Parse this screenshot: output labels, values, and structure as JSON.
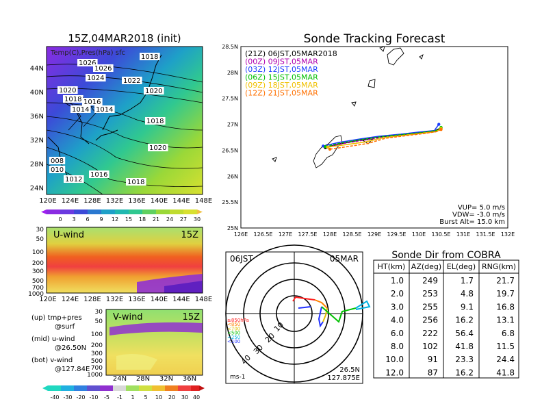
{
  "left": {
    "title": "15Z,04MAR2018 (init)",
    "map_label": "Temp(C),Pres(hPa) sfc",
    "map_x_ticks": [
      "120E",
      "124E",
      "128E",
      "132E",
      "136E",
      "140E",
      "144E",
      "148E"
    ],
    "map_y_ticks": [
      "44N",
      "40N",
      "36N",
      "32N",
      "28N",
      "24N"
    ],
    "isobar_labels": [
      "1026",
      "1026",
      "1024",
      "1022",
      "1018",
      "1020",
      "1020",
      "1018",
      "1016",
      "1014",
      "1014",
      "1018",
      "1020",
      "1016",
      "1012",
      "1018",
      "008",
      "010"
    ],
    "temp_colorbar": [
      "0",
      "3",
      "6",
      "9",
      "12",
      "15",
      "18",
      "21",
      "24",
      "27",
      "30"
    ],
    "uwind_title": "U-wind",
    "uwind_time": "15Z",
    "uwind_y_ticks": [
      "30",
      "50",
      "100",
      "200",
      "300",
      "500",
      "700",
      "1000"
    ],
    "uwind_x_ticks": [
      "120E",
      "124E",
      "128E",
      "132E",
      "136E",
      "140E",
      "144E",
      "148E"
    ],
    "vwind_title": "V-wind",
    "vwind_time": "15Z",
    "vwind_y_ticks": [
      "30",
      "50",
      "100",
      "200",
      "300",
      "500",
      "700",
      "1000"
    ],
    "vwind_x_ticks": [
      "24N",
      "28N",
      "32N",
      "36N"
    ],
    "notes": [
      "(up) tmp+pres",
      "@surf",
      "(mid) u-wind",
      "@26.50N",
      "(bot) v-wind",
      "@127.84E"
    ],
    "wind_colorbar": [
      "-40",
      "-30",
      "-20",
      "-10",
      "-5",
      "-1",
      "1",
      "5",
      "10",
      "20",
      "30",
      "40"
    ]
  },
  "tracking": {
    "title": "Sonde Tracking Forecast",
    "legend": [
      {
        "text": "(21Z) 06JST,05MAR2018",
        "color": "#000000"
      },
      {
        "text": "(00Z) 09JST,05MAR",
        "color": "#b000b0"
      },
      {
        "text": "(03Z) 12JST,05MAR",
        "color": "#1a3cff"
      },
      {
        "text": "(06Z) 15JST,05MAR",
        "color": "#00c000"
      },
      {
        "text": "(09Z) 18JST,05MAR",
        "color": "#f0c000"
      },
      {
        "text": "(12Z) 21JST,05MAR",
        "color": "#ff7000"
      }
    ],
    "params": [
      "VUP= 5.0 m/s",
      "VDW= -3.0 m/s",
      "Burst Alt= 15.0 km"
    ],
    "x_ticks": [
      "126E",
      "126.5E",
      "127E",
      "127.5E",
      "128E",
      "128.5E",
      "129E",
      "129.5E",
      "130E",
      "130.5E",
      "131E",
      "131.5E",
      "132E"
    ],
    "y_ticks": [
      "28.5N",
      "28N",
      "27.5N",
      "27N",
      "26.5N",
      "26N",
      "25.5N",
      "25N"
    ]
  },
  "polar": {
    "left_label": "06JST",
    "right_label": "05MAR",
    "ring_labels": [
      "10",
      "20",
      "30",
      "40"
    ],
    "height_legend": [
      {
        "text": "≥850hPa",
        "color": "#ff2020"
      },
      {
        "text": "<850",
        "color": "#ff8000"
      },
      {
        "text": "<700",
        "color": "#e0c000"
      },
      {
        "text": "<500",
        "color": "#00c000"
      },
      {
        "text": "<250",
        "color": "#00b0e0"
      },
      {
        "text": "<100",
        "color": "#2030ff"
      }
    ],
    "unit": "ms-1",
    "loc_lat": "26.5N",
    "loc_lon": "127.875E"
  },
  "table": {
    "title": "Sonde Dir from COBRA",
    "headers": [
      "HT(km)",
      "AZ(deg)",
      "EL(deg)",
      "RNG(km)"
    ],
    "rows": [
      [
        "1.0",
        "249",
        "1.7",
        "21.7"
      ],
      [
        "2.0",
        "253",
        "4.8",
        "19.7"
      ],
      [
        "3.0",
        "255",
        "9.1",
        "16.8"
      ],
      [
        "4.0",
        "256",
        "16.2",
        "13.1"
      ],
      [
        "6.0",
        "222",
        "56.4",
        "6.8"
      ],
      [
        "8.0",
        "102",
        "41.8",
        "11.5"
      ],
      [
        "10.0",
        "91",
        "23.3",
        "24.4"
      ],
      [
        "12.0",
        "87",
        "16.2",
        "41.8"
      ]
    ]
  },
  "chart_data": [
    {
      "type": "line",
      "title": "Sonde Tracking Forecast",
      "xlabel": "",
      "ylabel": "",
      "xlim": [
        126,
        132
      ],
      "ylim": [
        25,
        28.5
      ],
      "series": [
        {
          "name": "(21Z) 06JST,05MAR2018",
          "color": "#000000",
          "x": [
            127.9,
            128.2,
            128.7,
            129.1,
            129.6,
            130.0,
            130.35,
            130.5
          ],
          "y": [
            26.55,
            26.62,
            26.7,
            26.76,
            26.8,
            26.84,
            26.87,
            26.93
          ]
        },
        {
          "name": "(00Z) 09JST,05MAR",
          "color": "#b000b0",
          "x": [
            127.95,
            128.3,
            128.8,
            129.2,
            129.7,
            130.1,
            130.4,
            130.5
          ],
          "y": [
            26.56,
            26.63,
            26.7,
            26.75,
            26.79,
            26.83,
            26.86,
            26.92
          ]
        },
        {
          "name": "(03Z) 12JST,05MAR",
          "color": "#1a3cff",
          "x": [
            127.85,
            128.2,
            128.7,
            129.1,
            129.6,
            130.0,
            130.35,
            130.45
          ],
          "y": [
            26.58,
            26.65,
            26.72,
            26.77,
            26.81,
            26.85,
            26.88,
            27.0
          ]
        },
        {
          "name": "(06Z) 15JST,05MAR",
          "color": "#00c000",
          "x": [
            127.9,
            128.25,
            128.75,
            129.15,
            129.6,
            130.05,
            130.4,
            130.5
          ],
          "y": [
            26.57,
            26.64,
            26.71,
            26.76,
            26.8,
            26.84,
            26.88,
            26.94
          ]
        },
        {
          "name": "(09Z) 18JST,05MAR",
          "color": "#f0c000",
          "x": [
            127.95,
            128.3,
            128.8,
            129.2,
            129.7,
            130.1,
            130.4,
            130.5
          ],
          "y": [
            26.56,
            26.6,
            26.66,
            26.74,
            26.79,
            26.83,
            26.86,
            26.92
          ]
        },
        {
          "name": "(12Z) 21JST,05MAR",
          "color": "#ff7000",
          "x": [
            128.0,
            128.4,
            128.85,
            129.25,
            129.7,
            130.1,
            130.4,
            130.5
          ],
          "y": [
            26.52,
            26.57,
            26.63,
            26.73,
            26.78,
            26.82,
            26.86,
            26.9
          ]
        }
      ]
    },
    {
      "type": "table",
      "title": "Sonde Dir from COBRA",
      "columns": [
        "HT(km)",
        "AZ(deg)",
        "EL(deg)",
        "RNG(km)"
      ],
      "rows": [
        [
          1.0,
          249,
          1.7,
          21.7
        ],
        [
          2.0,
          253,
          4.8,
          19.7
        ],
        [
          3.0,
          255,
          9.1,
          16.8
        ],
        [
          4.0,
          256,
          16.2,
          13.1
        ],
        [
          6.0,
          222,
          56.4,
          6.8
        ],
        [
          8.0,
          102,
          41.8,
          11.5
        ],
        [
          10.0,
          91,
          23.3,
          24.4
        ],
        [
          12.0,
          87,
          16.2,
          41.8
        ]
      ]
    }
  ]
}
